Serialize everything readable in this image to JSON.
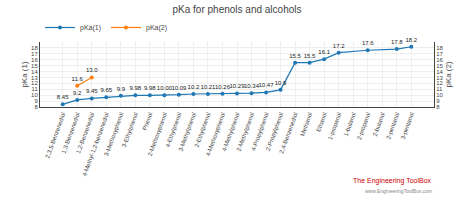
{
  "chart_data": {
    "type": "line",
    "title": "pKa for phenols and alcohols",
    "y_label": "pKa (1)",
    "y2_label": "pKa (2)",
    "categories": [
      "2,3,5-Benzenediol",
      "1,3-Benzenediol",
      "1,2-Benzenediol",
      "4-Methyl-1,2-benzenediol",
      "3-Methoxyphenol",
      "3-Ethylphenol",
      "Phenol",
      "2-Methoxyphenol",
      "4-Ethylphenol",
      "3-Methylphenol",
      "2-Ethylphenol",
      "4-Methoxyphenol",
      "4-Methylphenol",
      "2-Methylphenol",
      "4-Propylphenol",
      "2-Propylphenol",
      "2,4-Benzenediol",
      "Methanol",
      "Ethanol",
      "1-propanol",
      "1-butanol",
      "2-propanol",
      "2-butanol",
      "2-pentanol",
      "3-pentanol"
    ],
    "series": [
      {
        "name": "pKa(1)",
        "values": [
          8.45,
          9.2,
          9.45,
          9.65,
          9.9,
          9.98,
          9.98,
          10.0,
          10.09,
          10.2,
          10.21,
          10.26,
          10.29,
          10.34,
          10.47,
          10.9,
          15.5,
          15.5,
          16.1,
          17.2,
          null,
          17.6,
          null,
          17.8,
          18.2
        ],
        "value_labels": [
          "8.45",
          "9.2",
          "9.45",
          "9.65",
          "9.9",
          "9.98",
          "9.98",
          "10.00",
          "10.09",
          "10.2",
          "10.21",
          "10.26",
          "10.29",
          "10.34",
          "10.47",
          "10.9",
          "15.5",
          "15.5",
          "16.1",
          "17.2",
          null,
          "17.6",
          null,
          "17.8",
          "18.2"
        ]
      },
      {
        "name": "pKa(2)",
        "values": [
          null,
          11.6,
          13.0,
          null,
          null,
          null,
          null,
          null,
          null,
          null,
          null,
          null,
          null,
          null,
          null,
          null,
          null,
          null,
          null,
          null,
          null,
          null,
          null,
          null,
          null
        ],
        "value_labels": [
          null,
          "11.6",
          "13.0",
          null,
          null,
          null,
          null,
          null,
          null,
          null,
          null,
          null,
          null,
          null,
          null,
          null,
          null,
          null,
          null,
          null,
          null,
          null,
          null,
          null,
          null
        ]
      }
    ],
    "ylim": [
      8,
      19
    ],
    "yticks": [
      8,
      9,
      10,
      11,
      12,
      13,
      14,
      15,
      16,
      17,
      18
    ],
    "y2lim": [
      8,
      19
    ],
    "y2ticks": [
      8,
      9,
      10,
      11,
      12,
      13,
      14,
      15,
      16,
      17,
      18
    ],
    "grid": true,
    "data_labels": true,
    "legend": "top",
    "annotations": [
      {
        "text": "The Engineering ToolBox",
        "color": "#cc0000"
      },
      {
        "text": "www.EngineeringToolBox.com",
        "color": "#888888"
      }
    ]
  }
}
